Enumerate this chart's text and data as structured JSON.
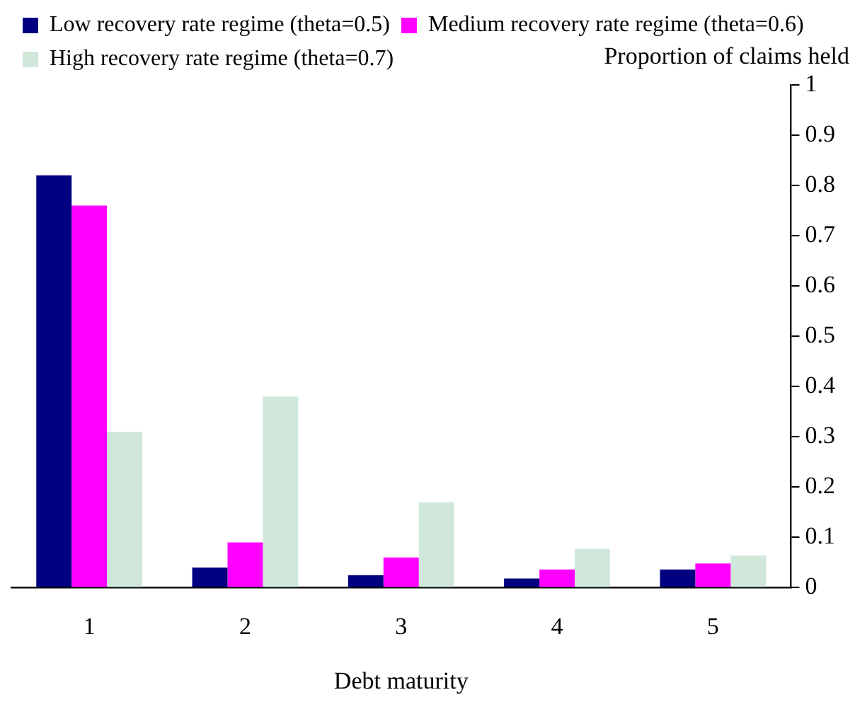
{
  "chart_data": {
    "type": "bar",
    "xlabel": "Debt maturity",
    "ylabel": "Proportion of claims held",
    "categories": [
      "1",
      "2",
      "3",
      "4",
      "5"
    ],
    "series": [
      {
        "name": "Low recovery rate regime (theta=0.5)",
        "color": "#000080",
        "values": [
          0.82,
          0.04,
          0.025,
          0.018,
          0.036
        ]
      },
      {
        "name": "Medium recovery rate regime (theta=0.6)",
        "color": "#ff00ff",
        "values": [
          0.76,
          0.09,
          0.06,
          0.036,
          0.048
        ]
      },
      {
        "name": "High recovery rate regime (theta=0.7)",
        "color": "#cfe8da",
        "values": [
          0.31,
          0.38,
          0.17,
          0.077,
          0.064
        ]
      }
    ],
    "ylim": [
      0,
      1
    ],
    "yticks": [
      0,
      0.1,
      0.2,
      0.3,
      0.4,
      0.5,
      0.6,
      0.7,
      0.8,
      0.9,
      1
    ],
    "grid": false,
    "legend": "top left"
  }
}
